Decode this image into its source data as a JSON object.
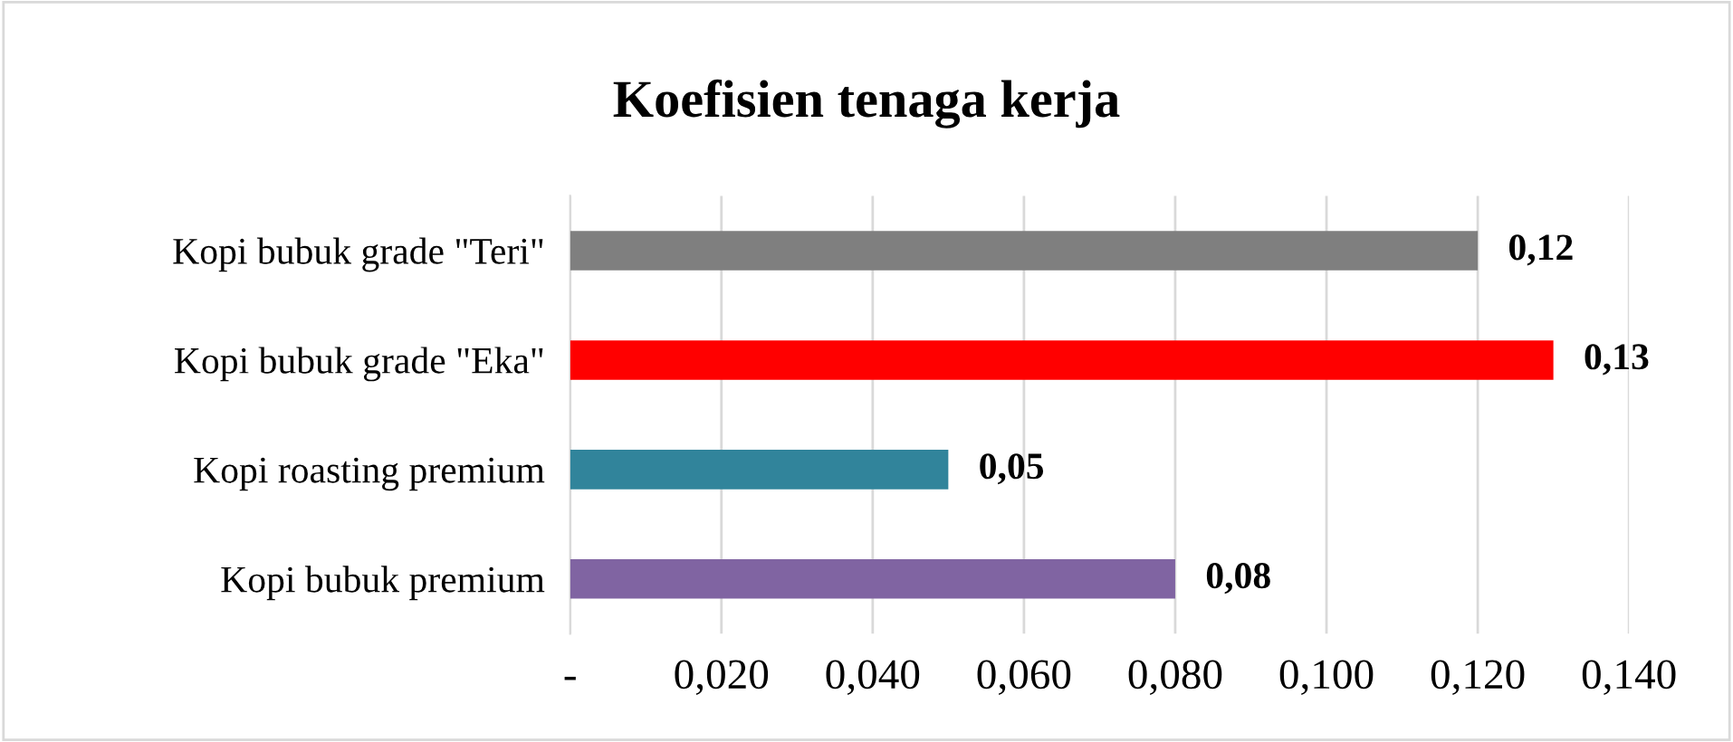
{
  "chart_data": {
    "type": "bar",
    "orientation": "horizontal",
    "title": "Koefisien tenaga kerja",
    "categories": [
      "Kopi bubuk grade \"Teri\"",
      "Kopi bubuk grade \"Eka\"",
      "Kopi roasting premium",
      "Kopi bubuk premium"
    ],
    "values": [
      0.12,
      0.13,
      0.05,
      0.08
    ],
    "colors": [
      "#7f7f7f",
      "#ff0000",
      "#31849b",
      "#8064a2"
    ],
    "value_labels": [
      "0,12",
      "0,13",
      "0,05",
      "0,08"
    ],
    "xlim": [
      0,
      0.14
    ],
    "xticks": [
      {
        "value": 0,
        "label": "-"
      },
      {
        "value": 0.02,
        "label": "0,020"
      },
      {
        "value": 0.04,
        "label": "0,040"
      },
      {
        "value": 0.06,
        "label": "0,060"
      },
      {
        "value": 0.08,
        "label": "0,080"
      },
      {
        "value": 0.1,
        "label": "0,100"
      },
      {
        "value": 0.12,
        "label": "0,120"
      },
      {
        "value": 0.14,
        "label": "0,140"
      }
    ],
    "grid": "x",
    "legend": false
  }
}
